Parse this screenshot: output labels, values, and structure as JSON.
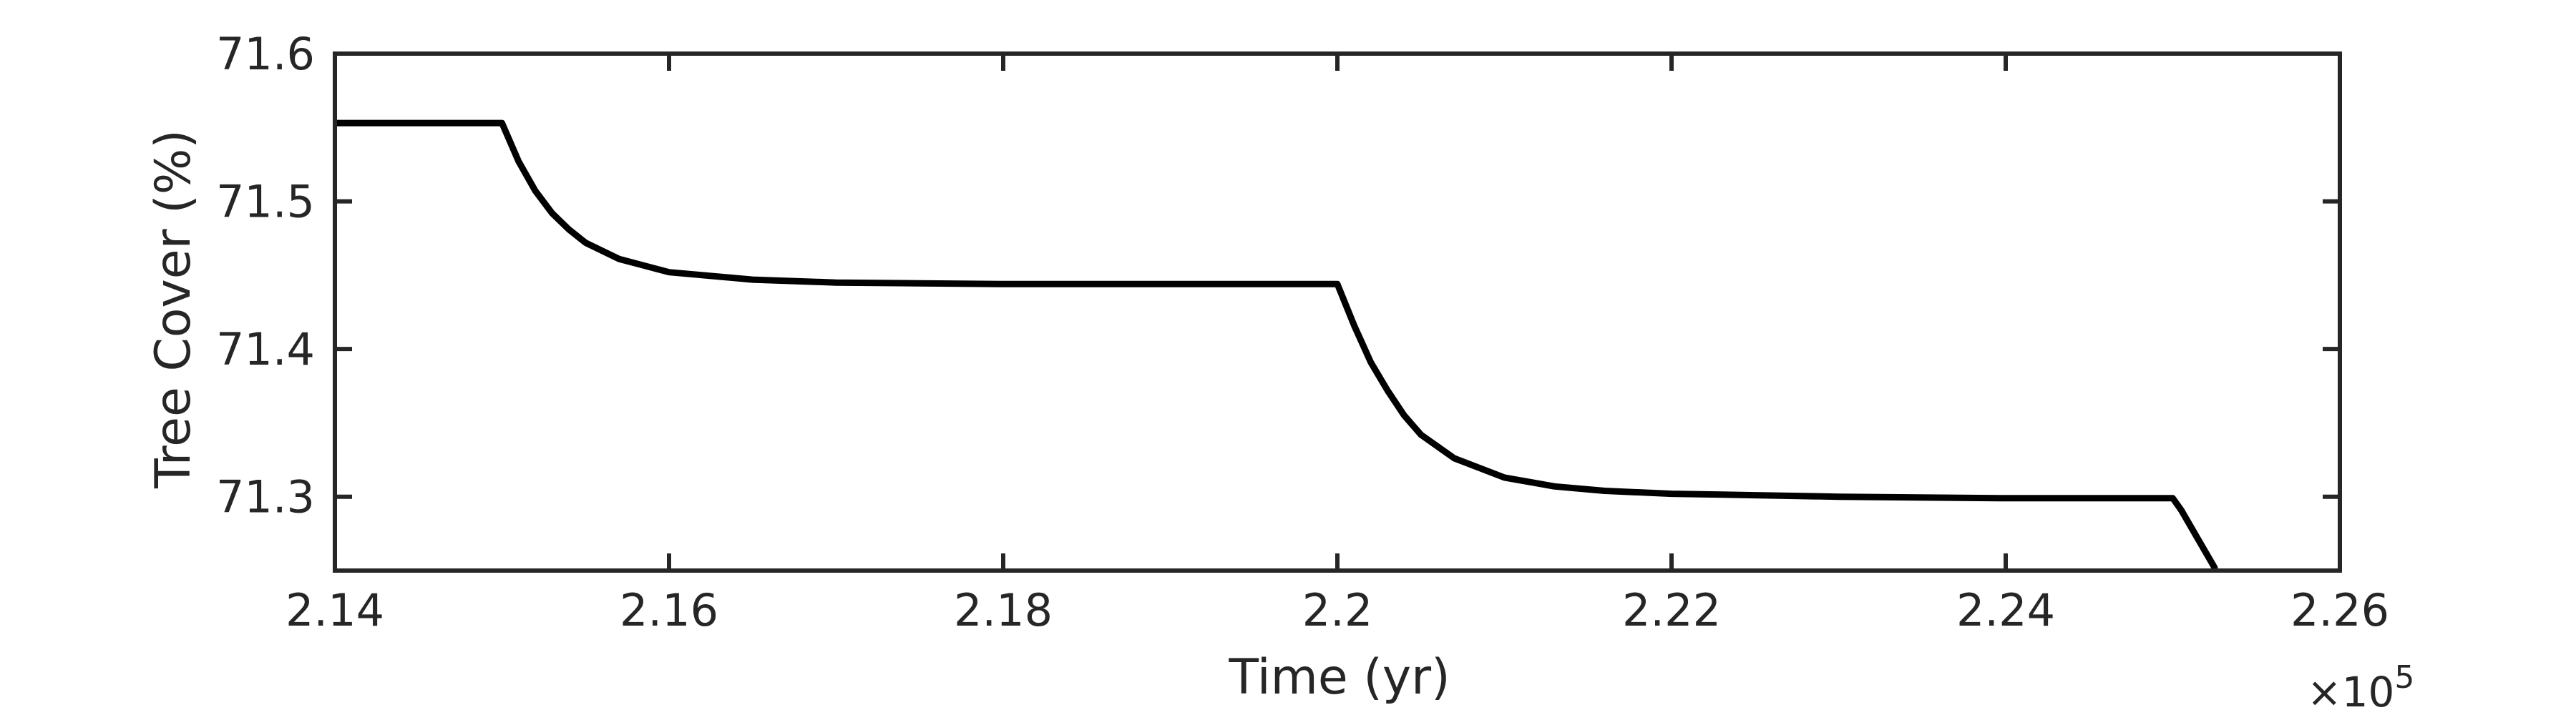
{
  "chart_data": {
    "type": "line",
    "xlabel": "Time (yr)",
    "ylabel": "Tree Cover (%)",
    "x_multiplier_label": "×10",
    "x_multiplier_exponent": "5",
    "x_tick_values": [
      2.14,
      2.16,
      2.18,
      2.2,
      2.22,
      2.24,
      2.26
    ],
    "x_tick_labels": [
      "2.14",
      "2.16",
      "2.18",
      "2.2",
      "2.22",
      "2.24",
      "2.26"
    ],
    "y_tick_values": [
      71.3,
      71.4,
      71.5,
      71.6
    ],
    "y_tick_labels": [
      "71.3",
      "71.4",
      "71.5",
      "71.6"
    ],
    "xlim": [
      2.14,
      2.26
    ],
    "ylim": [
      71.25,
      71.6
    ],
    "grid": false,
    "series": [
      {
        "color": "#000000",
        "x": [
          2.14,
          2.145,
          2.15,
          2.151,
          2.152,
          2.153,
          2.154,
          2.155,
          2.157,
          2.16,
          2.165,
          2.17,
          2.18,
          2.19,
          2.2,
          2.201,
          2.202,
          2.203,
          2.204,
          2.205,
          2.207,
          2.21,
          2.213,
          2.216,
          2.22,
          2.225,
          2.23,
          2.24,
          2.25,
          2.2505,
          2.2525
        ],
        "y": [
          71.553,
          71.553,
          71.553,
          71.527,
          71.507,
          71.492,
          71.481,
          71.472,
          71.461,
          71.452,
          71.447,
          71.445,
          71.444,
          71.444,
          71.444,
          71.416,
          71.391,
          71.372,
          71.355,
          71.342,
          71.326,
          71.313,
          71.307,
          71.304,
          71.302,
          71.301,
          71.3,
          71.299,
          71.299,
          71.291,
          71.252
        ]
      }
    ]
  }
}
